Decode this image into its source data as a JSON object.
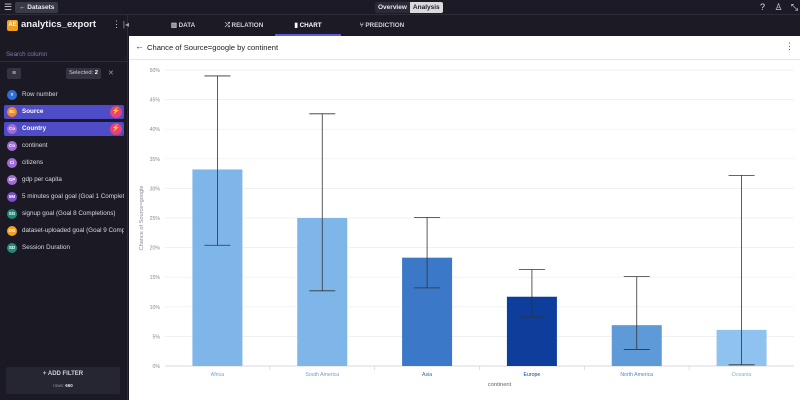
{
  "topbar": {
    "back_label": "← Datasets",
    "overview_label": "Overview",
    "analysis_label": "Analysis"
  },
  "sidebar": {
    "dataset_logo": "AE",
    "dataset_title": "analytics_export",
    "search_placeholder": "Search column",
    "selected_label": "Selected:",
    "selected_count": "2",
    "columns": [
      {
        "badge": "#",
        "label": "Row number",
        "color": "#2d6fd6",
        "selected": false
      },
      {
        "badge": "Sc",
        "label": "Source",
        "color": "#f08a21",
        "selected": true
      },
      {
        "badge": "Co",
        "label": "Country",
        "color": "#a06cd5",
        "selected": true
      },
      {
        "badge": "Co",
        "label": "continent",
        "color": "#a06cd5",
        "selected": false
      },
      {
        "badge": "Ci",
        "label": "citizens",
        "color": "#a06cd5",
        "selected": false
      },
      {
        "badge": "GP",
        "label": "gdp per capita",
        "color": "#a06cd5",
        "selected": false
      },
      {
        "badge": "5M",
        "label": "5 minutes goal goal (Goal 1 Completi",
        "color": "#7b4fc7",
        "selected": false
      },
      {
        "badge": "SG",
        "label": "signup goal (Goal 8 Completions)",
        "color": "#1f8a7a",
        "selected": false
      },
      {
        "badge": "DG",
        "label": "dataset-uploaded goal (Goal 9 Comp",
        "color": "#f0a021",
        "selected": false
      },
      {
        "badge": "SD",
        "label": "Session Duration",
        "color": "#1f8a7a",
        "selected": false
      }
    ],
    "add_filter_label": "+ ADD FILTER",
    "rows_label": "rows:",
    "rows_count": "660"
  },
  "tabs": [
    {
      "icon": "▥",
      "label": "DATA"
    },
    {
      "icon": "⤮",
      "label": "RELATION"
    },
    {
      "icon": "▮",
      "label": "CHART"
    },
    {
      "icon": "⑂",
      "label": "PREDICTION"
    }
  ],
  "chart_header": {
    "title": "Chance of Source=google by continent"
  },
  "chart_data": {
    "type": "bar",
    "ylabel": "Chance of Source=google",
    "xlabel": "continent",
    "ylim": [
      0,
      50
    ],
    "yticks": [
      "0%",
      "5%",
      "10%",
      "15%",
      "20%",
      "25%",
      "30%",
      "35%",
      "40%",
      "45%",
      "50%"
    ],
    "categories": [
      "Africa",
      "South America",
      "Asia",
      "Europe",
      "North America",
      "Oceania"
    ],
    "values": [
      33.2,
      25.0,
      18.3,
      11.7,
      6.9,
      6.1
    ],
    "error_low": [
      20.4,
      12.7,
      13.2,
      8.3,
      2.8,
      0.2
    ],
    "error_high": [
      49.0,
      42.6,
      25.1,
      16.3,
      15.1,
      32.2
    ],
    "bar_colors": [
      "#7fb6ea",
      "#7fb6ea",
      "#3c78c8",
      "#0d3e9c",
      "#5e9ad8",
      "#8fc2ef"
    ],
    "label_colors": [
      "#6a9fd6",
      "#6a9fd6",
      "#2f63b0",
      "#0d3e9c",
      "#4d88cc",
      "#7ab0e6"
    ],
    "grid": true
  }
}
